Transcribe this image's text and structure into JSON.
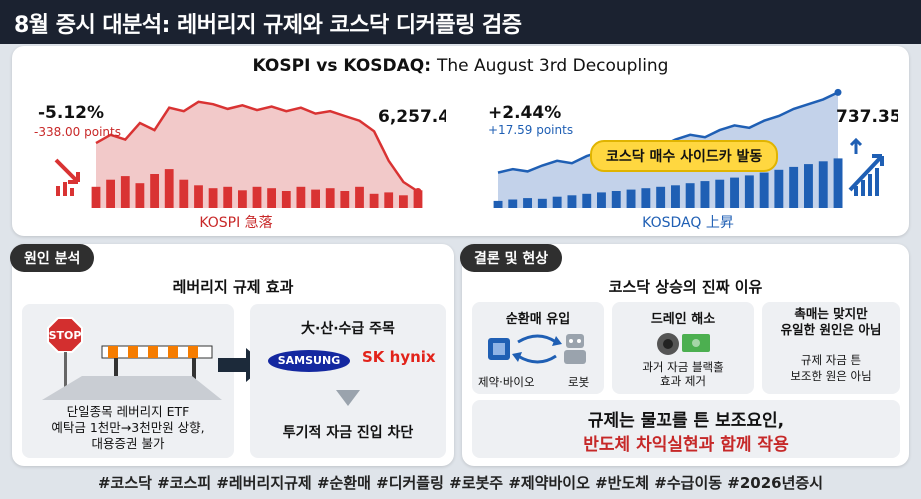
{
  "title": "8월 증시 대분석: 레버리지 규제와 코스닥 디커플링 검증",
  "top": {
    "title_bold": "KOSPI vs KOSDAQ:",
    "title_rest": "The August 3rd Decoupling",
    "callout": "코스닥 매수 사이드카 발동",
    "colors": {
      "kospi": "#d93333",
      "kosdaq": "#1f5fb4",
      "kospi_fill": "#f2c9c9",
      "kosdaq_fill": "#c3d2ea",
      "highlight": "#ffd740"
    }
  },
  "chart_data": [
    {
      "type": "line",
      "series": [
        {
          "name": "KOSPI 急落"
        }
      ],
      "xlabel": "KOSPI 急落",
      "ylabel": "",
      "change_pct": "-5.12%",
      "change_points": "-338.00 points",
      "value_label": "6,257.45",
      "line": [
        0.55,
        0.62,
        0.58,
        0.72,
        0.66,
        0.85,
        0.82,
        0.9,
        0.88,
        0.84,
        0.87,
        0.83,
        0.86,
        0.82,
        0.85,
        0.8,
        0.82,
        0.78,
        0.74,
        0.65,
        0.4,
        0.22,
        0.14
      ],
      "bars": [
        0.3,
        0.4,
        0.45,
        0.35,
        0.48,
        0.55,
        0.4,
        0.32,
        0.28,
        0.3,
        0.25,
        0.3,
        0.28,
        0.24,
        0.3,
        0.26,
        0.28,
        0.24,
        0.3,
        0.2,
        0.22,
        0.18,
        0.25
      ]
    },
    {
      "type": "line",
      "series": [
        {
          "name": "KOSDAQ 上昇"
        }
      ],
      "xlabel": "KOSDAQ 上昇",
      "ylabel": "",
      "change_pct": "+2.44%",
      "change_points": "+17.59 points",
      "value_label": "737.35",
      "line": [
        0.3,
        0.33,
        0.31,
        0.36,
        0.4,
        0.38,
        0.44,
        0.48,
        0.46,
        0.5,
        0.55,
        0.52,
        0.58,
        0.62,
        0.6,
        0.66,
        0.7,
        0.68,
        0.74,
        0.78,
        0.84,
        0.88,
        0.92,
        0.98
      ],
      "bars": [
        0.1,
        0.12,
        0.14,
        0.13,
        0.16,
        0.18,
        0.2,
        0.22,
        0.24,
        0.26,
        0.28,
        0.3,
        0.32,
        0.35,
        0.38,
        0.4,
        0.43,
        0.46,
        0.5,
        0.54,
        0.58,
        0.62,
        0.66,
        0.7
      ]
    }
  ],
  "cause": {
    "header": "원인 분석",
    "subtitle": "레버리지 규제 효과",
    "stop_sign": "STOP",
    "left_text": [
      "단일종목 레버리지 ETF",
      "예탁금 1천만→3천만원 상향,",
      "대용증권 불가"
    ],
    "right_title": "大·산·수급 주목",
    "samsung": "SAMSUNG",
    "sk_hynix": "SK hynix",
    "right_text": "투기적 자금 진입 차단"
  },
  "conclusion": {
    "header": "결론 및 현상",
    "subtitle": "코스닥 상승의 진짜 이유",
    "box1_title": "순환매 유입",
    "box1_label_a": "제약·바이오",
    "box1_label_b": "로봇",
    "box2_title": "드레인 해소",
    "box2_text": [
      "과거 자금 블랙홀",
      "효과 제거"
    ],
    "box3_title": [
      "촉매는 맞지만",
      "유일한 원인은 아님"
    ],
    "box3_text": [
      "규제 자금 튼",
      "보조한 원은 아님"
    ],
    "bottom_line1": "규제는 물꼬를 튼 보조요인,",
    "bottom_line2": "반도체 차익실현과 함께 작용"
  },
  "hashtags": "#코스닥 #코스피 #레버리지규제 #순환매 #디커플링 #로봇주 #제약바이오 #반도체 #수급이동 #2026년증시"
}
